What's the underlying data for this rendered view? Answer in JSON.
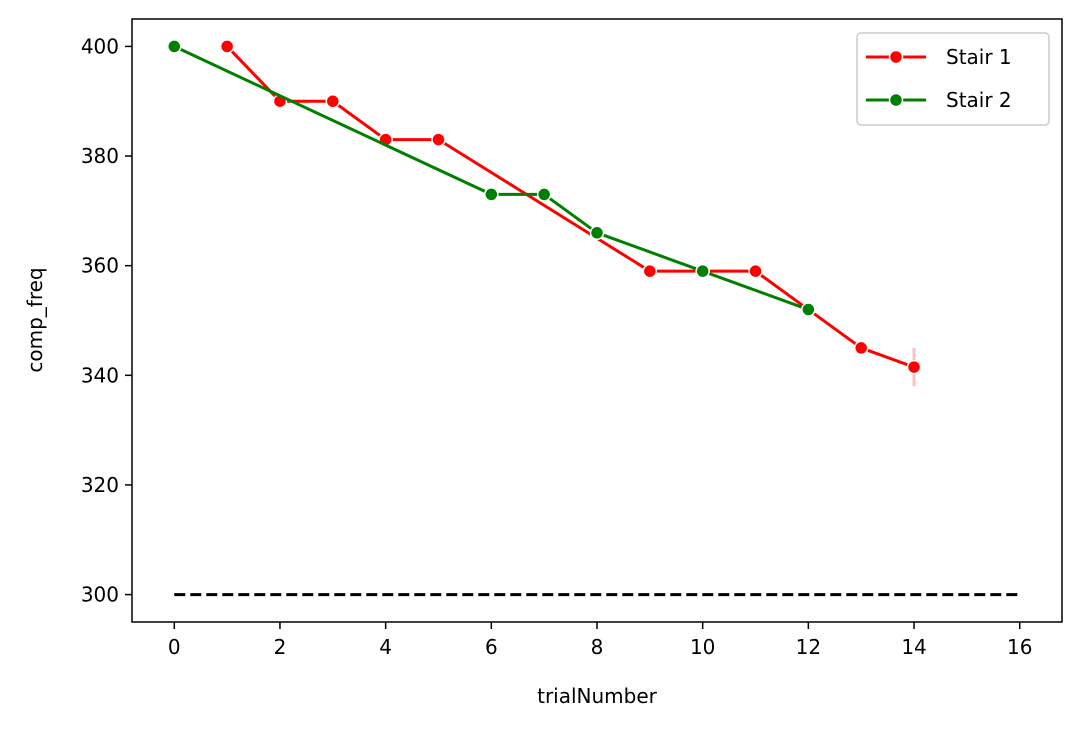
{
  "chart_data": {
    "type": "line",
    "title": "",
    "xlabel": "trialNumber",
    "ylabel": "comp_freq",
    "xlim": [
      -0.8,
      16.8
    ],
    "ylim": [
      295,
      405
    ],
    "xticks": [
      0,
      2,
      4,
      6,
      8,
      10,
      12,
      14,
      16
    ],
    "yticks": [
      300,
      320,
      340,
      360,
      380,
      400
    ],
    "xtick_labels": [
      "0",
      "2",
      "4",
      "6",
      "8",
      "10",
      "12",
      "14",
      "16"
    ],
    "ytick_labels": [
      "300",
      "320",
      "340",
      "360",
      "380",
      "400"
    ],
    "grid": false,
    "legend_position": "top-right",
    "series": [
      {
        "name": "Stair 1",
        "color": "#ff0000",
        "marker": "circle",
        "x": [
          1,
          2,
          3,
          4,
          5,
          6,
          7,
          8,
          9,
          10,
          11,
          12,
          13,
          14
        ],
        "y": [
          400,
          390,
          390,
          383,
          383,
          377,
          371,
          365,
          359,
          359,
          359,
          352,
          345,
          341.5
        ],
        "markers_at": [
          1,
          2,
          3,
          4,
          5,
          9,
          10,
          11,
          12,
          13,
          14
        ],
        "error_bars": [
          {
            "x": 14,
            "low": 338,
            "high": 345
          }
        ]
      },
      {
        "name": "Stair 2",
        "color": "#008000",
        "marker": "circle",
        "x": [
          0,
          6,
          7,
          8,
          10,
          12
        ],
        "y": [
          400,
          373,
          373,
          366,
          359,
          352
        ],
        "markers_at": [
          0,
          6,
          7,
          8,
          10,
          12
        ]
      }
    ],
    "reference_line": {
      "x": [
        0,
        16
      ],
      "y": 300,
      "style": "dashed",
      "color": "#000000"
    }
  }
}
